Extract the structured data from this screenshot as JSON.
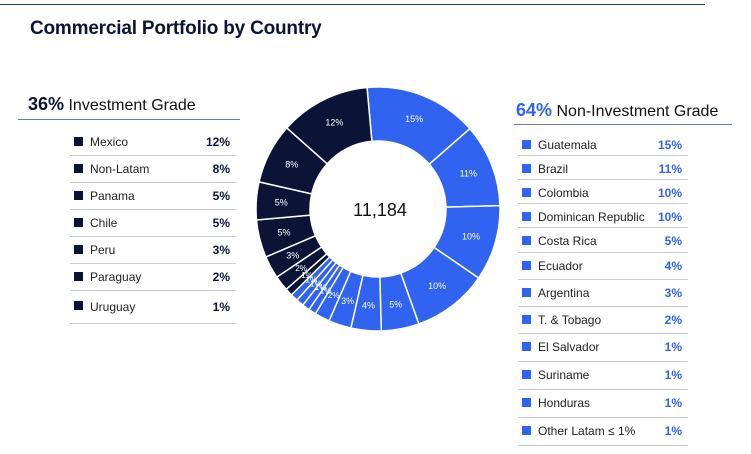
{
  "title": "Commercial Portfolio by Country",
  "investment": {
    "pct": "36%",
    "label": "Investment Grade",
    "items": [
      {
        "name": "Mexico",
        "value": "12%"
      },
      {
        "name": "Non-Latam",
        "value": "8%"
      },
      {
        "name": "Panama",
        "value": "5%"
      },
      {
        "name": "Chile",
        "value": "5%"
      },
      {
        "name": "Peru",
        "value": "3%"
      },
      {
        "name": "Paraguay",
        "value": "2%"
      },
      {
        "name": "Uruguay",
        "value": "1%"
      }
    ]
  },
  "non_investment": {
    "pct": "64%",
    "label": "Non-Investment Grade",
    "items": [
      {
        "name": "Guatemala",
        "value": "15%"
      },
      {
        "name": "Brazil",
        "value": "11%"
      },
      {
        "name": "Colombia",
        "value": "10%"
      },
      {
        "name": "Dominican Republic",
        "value": "10%"
      },
      {
        "name": "Costa Rica",
        "value": "5%"
      },
      {
        "name": "Ecuador",
        "value": "4%"
      },
      {
        "name": "Argentina",
        "value": "3%"
      },
      {
        "name": "T. & Tobago",
        "value": "2%"
      },
      {
        "name": "El Salvador",
        "value": "1%"
      },
      {
        "name": "Suriname",
        "value": "1%"
      },
      {
        "name": "Honduras",
        "value": "1%"
      },
      {
        "name": "Other Latam ≤ 1%",
        "value": "1%"
      }
    ]
  },
  "chart_data": {
    "type": "pie",
    "title": "Commercial Portfolio by Country",
    "center_label": "11,184",
    "colors": {
      "investment": "#0b1437",
      "non_investment": "#2f63f0",
      "border": "#ffffff",
      "label": "#ffffff"
    },
    "slices": [
      {
        "name": "Guatemala",
        "value": 15,
        "label": "15%",
        "group": "non_investment"
      },
      {
        "name": "Brazil",
        "value": 11,
        "label": "11%",
        "group": "non_investment"
      },
      {
        "name": "Colombia",
        "value": 10,
        "label": "10%",
        "group": "non_investment"
      },
      {
        "name": "Dominican Republic",
        "value": 10,
        "label": "10%",
        "group": "non_investment"
      },
      {
        "name": "Costa Rica",
        "value": 5,
        "label": "5%",
        "group": "non_investment"
      },
      {
        "name": "Ecuador",
        "value": 4,
        "label": "4%",
        "group": "non_investment"
      },
      {
        "name": "Argentina",
        "value": 3,
        "label": "3%",
        "group": "non_investment"
      },
      {
        "name": "T. & Tobago",
        "value": 2,
        "label": "2%",
        "group": "non_investment"
      },
      {
        "name": "El Salvador",
        "value": 1,
        "label": "1%",
        "group": "non_investment"
      },
      {
        "name": "Suriname",
        "value": 1,
        "label": "1%",
        "group": "non_investment"
      },
      {
        "name": "Honduras",
        "value": 1,
        "label": "1%",
        "group": "non_investment"
      },
      {
        "name": "Other Latam",
        "value": 1,
        "label": "1%",
        "group": "non_investment"
      },
      {
        "name": "Uruguay",
        "value": 1,
        "label": "1%",
        "group": "investment"
      },
      {
        "name": "Paraguay",
        "value": 2,
        "label": "2%",
        "group": "investment"
      },
      {
        "name": "Peru",
        "value": 3,
        "label": "3%",
        "group": "investment"
      },
      {
        "name": "Chile",
        "value": 5,
        "label": "5%",
        "group": "investment"
      },
      {
        "name": "Panama",
        "value": 5,
        "label": "5%",
        "group": "investment"
      },
      {
        "name": "Non-Latam",
        "value": 8,
        "label": "8%",
        "group": "investment"
      },
      {
        "name": "Mexico",
        "value": 12,
        "label": "12%",
        "group": "investment"
      }
    ]
  }
}
